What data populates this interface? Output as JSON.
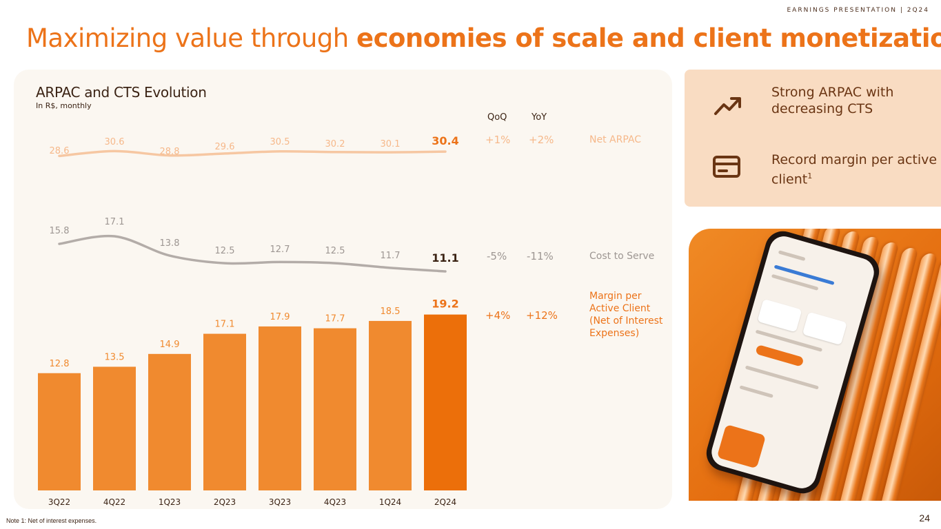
{
  "header": {
    "tag": "EARNINGS PRESENTATION | 2Q24",
    "title_prefix": "Maximizing value through ",
    "title_bold": "economies of scale and client monetization"
  },
  "chart_panel": {
    "title": "ARPAC and CTS Evolution",
    "subtitle": "In R$, monthly",
    "col_qoq": "QoQ",
    "col_yoy": "YoY"
  },
  "rows": [
    {
      "label": "Net ARPAC",
      "qoq": "+1%",
      "yoy": "+2%"
    },
    {
      "label": "Cost to Serve",
      "qoq": "-5%",
      "yoy": "-11%"
    },
    {
      "label": "Margin per Active Client (Net of Interest Expenses)",
      "qoq": "+4%",
      "yoy": "+12%"
    }
  ],
  "chart_data": {
    "type": "bar",
    "categories": [
      "3Q22",
      "4Q22",
      "1Q23",
      "2Q23",
      "3Q23",
      "4Q23",
      "1Q24",
      "2Q24"
    ],
    "title": "ARPAC and CTS Evolution",
    "subtitle": "In R$, monthly",
    "series": [
      {
        "name": "Net ARPAC",
        "type": "line",
        "color": "#f6c7a2",
        "values": [
          28.6,
          30.6,
          28.8,
          29.6,
          30.5,
          30.2,
          30.1,
          30.4
        ]
      },
      {
        "name": "Cost to Serve",
        "type": "line",
        "color": "#b3aca8",
        "values": [
          15.8,
          17.1,
          13.8,
          12.5,
          12.7,
          12.5,
          11.7,
          11.1
        ]
      },
      {
        "name": "Margin per Active Client (Net of Interest Expenses)",
        "type": "bar",
        "color": "#f08a2f",
        "highlight_color": "#ec6f0a",
        "values": [
          12.8,
          13.5,
          14.9,
          17.1,
          17.9,
          17.7,
          18.5,
          19.2
        ]
      }
    ],
    "highlight_last": true,
    "grid": false,
    "legend": "right (row labels)"
  },
  "highlights": [
    {
      "icon": "trending-up-icon",
      "text": "Strong ARPAC with decreasing CTS",
      "sup": ""
    },
    {
      "icon": "credit-card-icon",
      "text": "Record margin per active client",
      "sup": "1"
    }
  ],
  "colors": {
    "accent": "#ec7319",
    "arpac_light": "#f6c7a2",
    "arpac_dark": "#ec7319",
    "cts_light": "#b3aca8",
    "cts_dark": "#3b2314",
    "panel_bg": "#fbf7f1",
    "side_panel_bg": "#f9dcc2",
    "brown_text": "#6a3513"
  },
  "footer": {
    "note": "Note 1: Net of interest expenses.",
    "page": "24"
  }
}
